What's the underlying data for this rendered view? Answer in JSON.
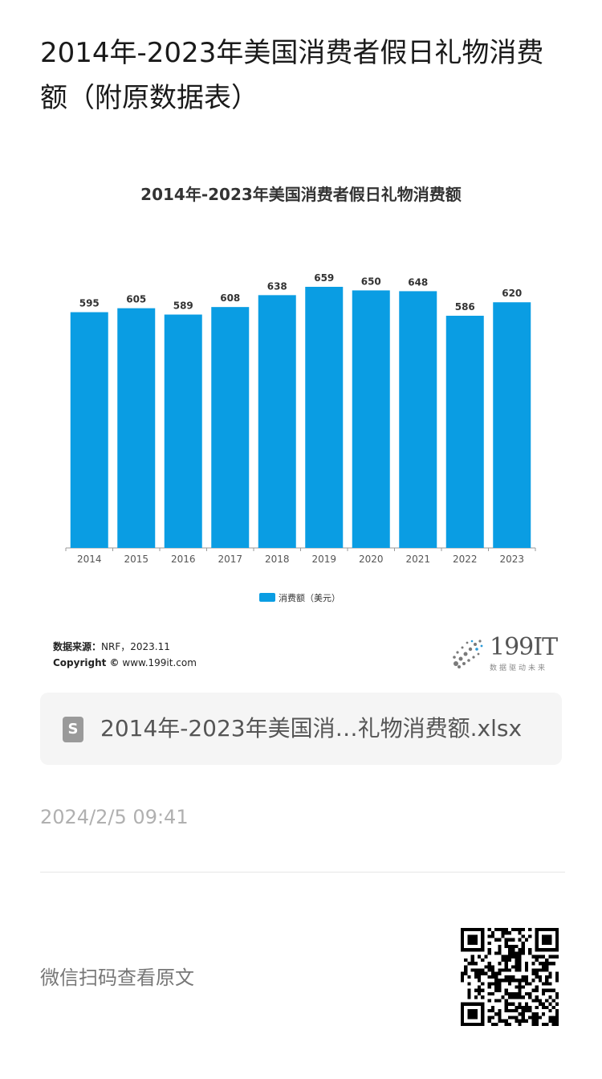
{
  "article": {
    "title": "2014年-2023年美国消费者假日礼物消费额（附原数据表）"
  },
  "chart_data": {
    "type": "bar",
    "title": "2014年-2023年美国消费者假日礼物消费额",
    "categories": [
      "2014",
      "2015",
      "2016",
      "2017",
      "2018",
      "2019",
      "2020",
      "2021",
      "2022",
      "2023"
    ],
    "series": [
      {
        "name": "消费额（美元）",
        "values": [
          595,
          605,
          589,
          608,
          638,
          659,
          650,
          648,
          586,
          620
        ]
      }
    ],
    "ylim": [
      0,
      700
    ],
    "grid": false,
    "legend": "bottom-center",
    "colors": {
      "bar": "#0a9de3",
      "axis": "#999999"
    }
  },
  "source": {
    "label": "数据来源：",
    "value": "NRF，2023.11",
    "copyright_label": "Copyright ©",
    "copyright_value": "www.199it.com"
  },
  "logo": {
    "text": "199IT",
    "tagline": "数据驱动未来"
  },
  "attachment": {
    "icon": "spreadsheet-icon",
    "icon_glyph": "S",
    "filename": "2014年-2023年美国消…礼物消费额.xlsx"
  },
  "meta": {
    "timestamp": "2024/2/5 09:41"
  },
  "qr": {
    "hint": "微信扫码查看原文",
    "icon": "qr-code-icon"
  }
}
